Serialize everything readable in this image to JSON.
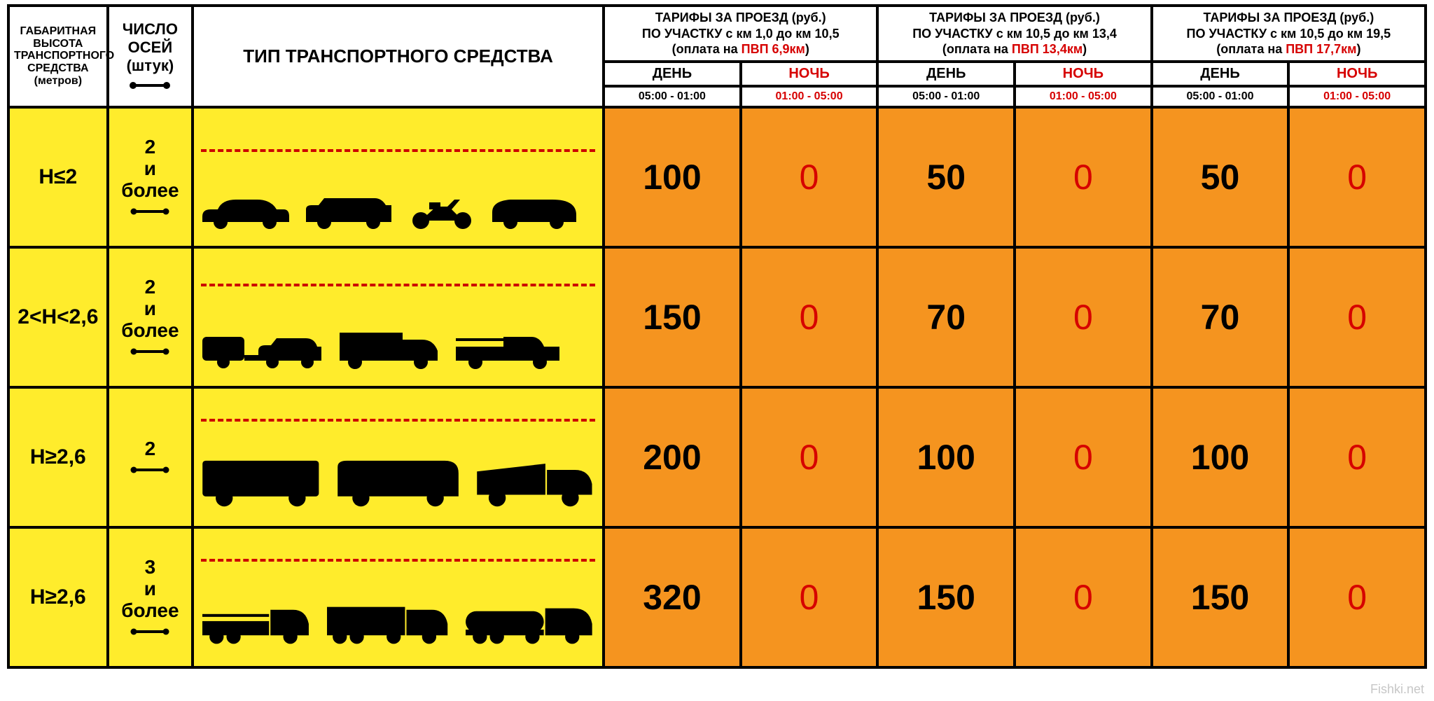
{
  "colors": {
    "border": "#000000",
    "yellow_bg": "#ffec2c",
    "orange_bg": "#f5941f",
    "white_bg": "#ffffff",
    "red_text": "#d60000",
    "dash_line": "#cc0000",
    "vehicle_fill": "#000000",
    "credit_text": "#c7c7c7"
  },
  "typography": {
    "family": "Arial",
    "header_small_pt": 16,
    "header_med_pt": 22,
    "header_big_pt": 26,
    "tariff_title_pt": 18,
    "daycol_pt": 20,
    "time_pt": 16,
    "height_label_pt": 30,
    "axles_label_pt": 28,
    "price_day_pt": 50,
    "price_night_pt": 50
  },
  "header": {
    "col_height": "ГАБАРИТНАЯ ВЫСОТА ТРАНСПОРТНОГО СРЕДСТВА (метров)",
    "col_axles": "ЧИСЛО ОСЕЙ (штук)",
    "col_vtype": "ТИП ТРАНСПОРТНОГО СРЕДСТВА",
    "tariff_groups": [
      {
        "line1": "ТАРИФЫ ЗА ПРОЕЗД (руб.)",
        "line2": "ПО УЧАСТКУ с км 1,0 до км 10,5",
        "line3_prefix": "(оплата на ",
        "line3_red": "ПВП 6,9км",
        "line3_suffix": ")"
      },
      {
        "line1": "ТАРИФЫ ЗА ПРОЕЗД (руб.)",
        "line2": "ПО УЧАСТКУ с км 10,5 до км 13,4",
        "line3_prefix": "(оплата на ",
        "line3_red": "ПВП 13,4км",
        "line3_suffix": ")"
      },
      {
        "line1": "ТАРИФЫ ЗА ПРОЕЗД (руб.)",
        "line2": "ПО УЧАСТКУ с км 10,5 до км 19,5",
        "line3_prefix": "(оплата на ",
        "line3_red": "ПВП 17,7км",
        "line3_suffix": ")"
      }
    ],
    "day_label": "ДЕНЬ",
    "night_label": "НОЧЬ",
    "day_time": "05:00 - 01:00",
    "night_time": "01:00 - 05:00"
  },
  "rows": [
    {
      "height": "H≤2",
      "axles": "2 и более",
      "dash_top_pct": 30,
      "vehicles": [
        "sedan",
        "suv",
        "motorcycle",
        "minivan"
      ],
      "prices": [
        {
          "day": "100",
          "night": "0"
        },
        {
          "day": "50",
          "night": "0"
        },
        {
          "day": "50",
          "night": "0"
        }
      ]
    },
    {
      "height": "2<H<2,6",
      "axles": "2 и более",
      "dash_top_pct": 26,
      "vehicles": [
        "caravan-car",
        "box-van",
        "pickup"
      ],
      "prices": [
        {
          "day": "150",
          "night": "0"
        },
        {
          "day": "70",
          "night": "0"
        },
        {
          "day": "70",
          "night": "0"
        }
      ]
    },
    {
      "height": "H≥2,6",
      "axles": "2",
      "dash_top_pct": 22,
      "vehicles": [
        "minibus",
        "coach",
        "dump-truck"
      ],
      "prices": [
        {
          "day": "200",
          "night": "0"
        },
        {
          "day": "100",
          "night": "0"
        },
        {
          "day": "100",
          "night": "0"
        }
      ]
    },
    {
      "height": "H≥2,6",
      "axles": "3 и более",
      "dash_top_pct": 22,
      "vehicles": [
        "flatbed-truck",
        "semi-trailer",
        "tanker-truck"
      ],
      "prices": [
        {
          "day": "320",
          "night": "0"
        },
        {
          "day": "150",
          "night": "0"
        },
        {
          "day": "150",
          "night": "0"
        }
      ]
    }
  ],
  "credit": "Fishki.net"
}
